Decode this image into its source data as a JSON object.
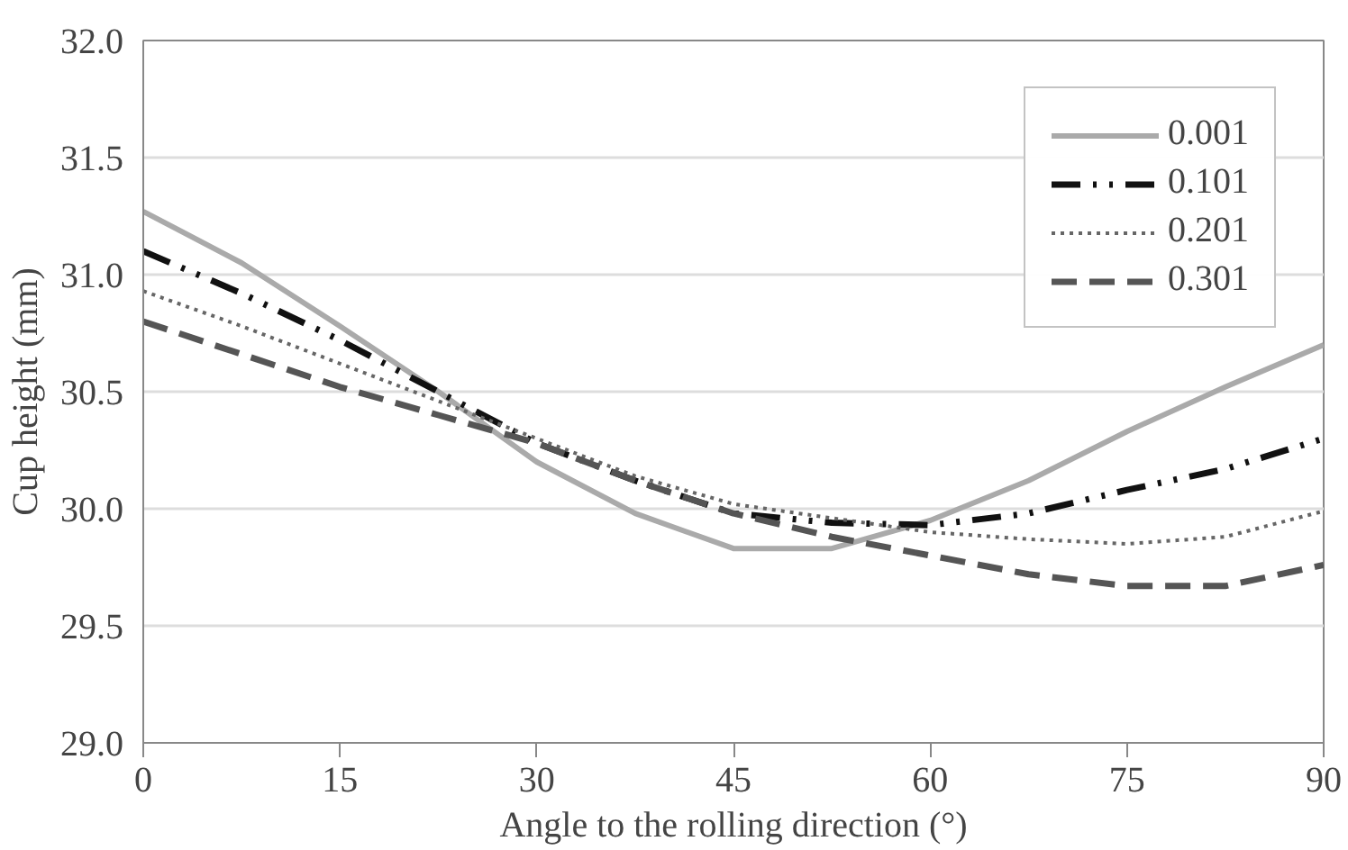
{
  "chart_data": {
    "type": "line",
    "xlabel": "Angle to the rolling direction (°)",
    "ylabel": "Cup height (mm)",
    "x": [
      0,
      7.5,
      15,
      22.5,
      30,
      37.5,
      45,
      52.5,
      60,
      67.5,
      75,
      82.5,
      90
    ],
    "series": [
      {
        "name": "0.001",
        "color": "#aaaaaa",
        "line_style": "solid",
        "values": [
          31.27,
          31.05,
          30.78,
          30.5,
          30.2,
          29.98,
          29.83,
          29.83,
          29.95,
          30.12,
          30.33,
          30.52,
          30.7
        ]
      },
      {
        "name": "0.101",
        "color": "#111111",
        "line_style": "dashdotdot",
        "values": [
          31.1,
          30.92,
          30.72,
          30.5,
          30.28,
          30.12,
          29.98,
          29.94,
          29.93,
          29.98,
          30.08,
          30.17,
          30.3
        ]
      },
      {
        "name": "0.201",
        "color": "#666666",
        "line_style": "dotted",
        "values": [
          30.93,
          30.78,
          30.62,
          30.46,
          30.3,
          30.14,
          30.02,
          29.96,
          29.9,
          29.87,
          29.85,
          29.88,
          29.99
        ]
      },
      {
        "name": "0.301",
        "color": "#555555",
        "line_style": "dashed",
        "values": [
          30.8,
          30.66,
          30.52,
          30.4,
          30.28,
          30.12,
          29.98,
          29.88,
          29.8,
          29.72,
          29.67,
          29.67,
          29.76
        ]
      }
    ],
    "xlim": [
      0,
      90
    ],
    "xticks": [
      0,
      15,
      30,
      45,
      60,
      75,
      90
    ],
    "ylim": [
      29.0,
      32.0
    ],
    "yticks": [
      {
        "value": 29.0,
        "label": "29.0"
      },
      {
        "value": 29.5,
        "label": "29.5"
      },
      {
        "value": 30.0,
        "label": "30.0"
      },
      {
        "value": 30.5,
        "label": "30.5"
      },
      {
        "value": 31.0,
        "label": "31.0"
      },
      {
        "value": 31.5,
        "label": "31.5"
      },
      {
        "value": 32.0,
        "label": "32.0"
      }
    ],
    "grid": "y",
    "legend": "top right",
    "marker": "none"
  }
}
